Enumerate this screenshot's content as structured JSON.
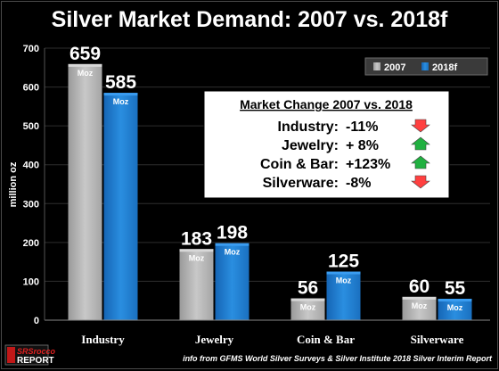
{
  "chart_data": {
    "type": "bar",
    "title": "Silver Market Demand:  2007 vs. 2018f",
    "ylabel": "million oz",
    "xlabel": "",
    "ylim": [
      0,
      700
    ],
    "yticks": [
      0,
      100,
      200,
      300,
      400,
      500,
      600,
      700
    ],
    "grid": true,
    "legend_position": "top-right",
    "categories": [
      "Industry",
      "Jewelry",
      "Coin & Bar",
      "Silverware"
    ],
    "series": [
      {
        "name": "2007",
        "color": "#b8b8b8",
        "values": [
          659,
          183,
          56,
          60
        ]
      },
      {
        "name": "2018f",
        "color": "#1f7fd0",
        "values": [
          585,
          198,
          125,
          55
        ]
      }
    ],
    "unit_label": "Moz",
    "value_labels": [
      [
        "659",
        "183",
        "56",
        "60"
      ],
      [
        "585",
        "198",
        "125",
        "55"
      ]
    ],
    "annotation_box": {
      "title": "Market Change 2007 vs. 2018",
      "rows": [
        {
          "label": "Industry:",
          "value": "-11%",
          "arrow": "down",
          "arrow_color": "#ff4040"
        },
        {
          "label": "Jewelry:",
          "value": "+ 8%",
          "arrow": "up",
          "arrow_color": "#20b040"
        },
        {
          "label": "Coin & Bar:",
          "value": "+123%",
          "arrow": "up",
          "arrow_color": "#20b040"
        },
        {
          "label": "Silverware:",
          "value": "-8%",
          "arrow": "down",
          "arrow_color": "#ff4040"
        }
      ]
    }
  },
  "source_note": "info from GFMS World Silver Surveys & Silver Institute 2018 Silver Interim Report",
  "logo": {
    "top_text": "SRSrocco",
    "bottom_text": "REPORT"
  }
}
